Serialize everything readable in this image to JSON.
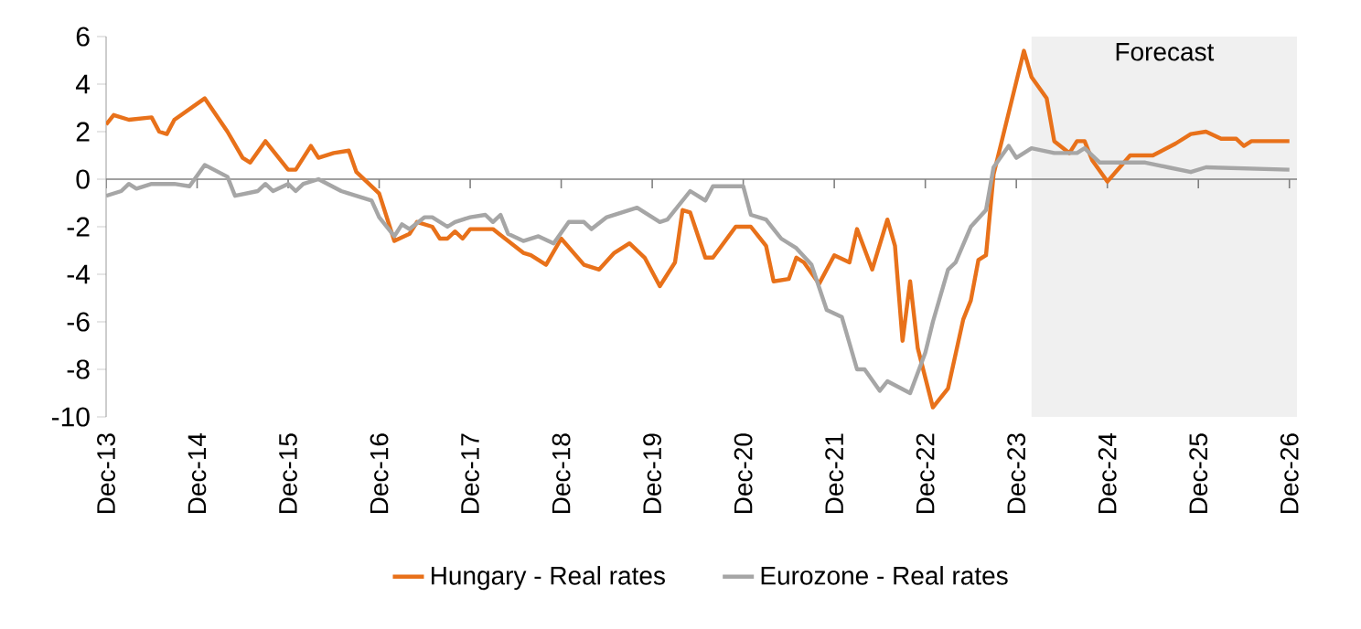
{
  "chart_data": {
    "type": "line",
    "xlim": [
      "2013-12",
      "2027-01"
    ],
    "ylim": [
      -10,
      6
    ],
    "yticks": [
      -10,
      -8,
      -6,
      -4,
      -2,
      0,
      2,
      4,
      6
    ],
    "xticks": [
      {
        "value": "2013-12",
        "label": "Dec-13"
      },
      {
        "value": "2014-12",
        "label": "Dec-14"
      },
      {
        "value": "2015-12",
        "label": "Dec-15"
      },
      {
        "value": "2016-12",
        "label": "Dec-16"
      },
      {
        "value": "2017-12",
        "label": "Dec-17"
      },
      {
        "value": "2018-12",
        "label": "Dec-18"
      },
      {
        "value": "2019-12",
        "label": "Dec-19"
      },
      {
        "value": "2020-12",
        "label": "Dec-20"
      },
      {
        "value": "2021-12",
        "label": "Dec-21"
      },
      {
        "value": "2022-12",
        "label": "Dec-22"
      },
      {
        "value": "2023-12",
        "label": "Dec-23"
      },
      {
        "value": "2024-12",
        "label": "Dec-24"
      },
      {
        "value": "2025-12",
        "label": "Dec-25"
      },
      {
        "value": "2026-12",
        "label": "Dec-26"
      }
    ],
    "grid": false,
    "legend": "bottom",
    "marker": "none",
    "line_style": "solid",
    "ref_lines": [
      {
        "axis": "y",
        "value": 0,
        "color": "#808080"
      }
    ],
    "bands": [
      {
        "axis": "x",
        "from": "2024-02",
        "to": "2027-01",
        "label": "Forecast",
        "color": "#f0f0f0"
      }
    ],
    "series": [
      {
        "name": "Hungary - Real rates",
        "color": "#e8711a",
        "x": [
          "2013-12",
          "2014-01",
          "2014-03",
          "2014-06",
          "2014-07",
          "2014-08",
          "2014-09",
          "2015-01",
          "2015-04",
          "2015-06",
          "2015-07",
          "2015-09",
          "2015-12",
          "2016-01",
          "2016-03",
          "2016-04",
          "2016-06",
          "2016-08",
          "2016-09",
          "2016-12",
          "2017-02",
          "2017-04",
          "2017-05",
          "2017-07",
          "2017-08",
          "2017-09",
          "2017-10",
          "2017-11",
          "2017-12",
          "2018-03",
          "2018-05",
          "2018-07",
          "2018-08",
          "2018-10",
          "2018-12",
          "2019-03",
          "2019-05",
          "2019-07",
          "2019-09",
          "2019-11",
          "2020-01",
          "2020-03",
          "2020-04",
          "2020-05",
          "2020-07",
          "2020-08",
          "2020-11",
          "2021-01",
          "2021-03",
          "2021-04",
          "2021-06",
          "2021-07",
          "2021-08",
          "2021-10",
          "2021-12",
          "2022-02",
          "2022-03",
          "2022-05",
          "2022-07",
          "2022-08",
          "2022-09",
          "2022-10",
          "2022-11",
          "2023-01",
          "2023-03",
          "2023-05",
          "2023-06",
          "2023-07",
          "2023-08",
          "2023-09",
          "2024-01",
          "2024-02",
          "2024-04",
          "2024-05",
          "2024-07",
          "2024-08",
          "2024-09",
          "2024-10",
          "2024-12",
          "2025-03",
          "2025-06",
          "2025-09",
          "2025-11",
          "2026-01",
          "2026-03",
          "2026-05",
          "2026-06",
          "2026-07",
          "2026-12"
        ],
        "values": [
          2.3,
          2.7,
          2.5,
          2.6,
          2.0,
          1.9,
          2.5,
          3.4,
          2.0,
          0.9,
          0.7,
          1.6,
          0.4,
          0.4,
          1.4,
          0.9,
          1.1,
          1.2,
          0.3,
          -0.6,
          -2.6,
          -2.3,
          -1.8,
          -2.0,
          -2.5,
          -2.5,
          -2.2,
          -2.5,
          -2.1,
          -2.1,
          -2.6,
          -3.1,
          -3.2,
          -3.6,
          -2.5,
          -3.6,
          -3.8,
          -3.1,
          -2.7,
          -3.3,
          -4.5,
          -3.5,
          -1.3,
          -1.4,
          -3.3,
          -3.3,
          -2.0,
          -2.0,
          -2.8,
          -4.3,
          -4.2,
          -3.3,
          -3.5,
          -4.4,
          -3.2,
          -3.5,
          -2.1,
          -3.8,
          -1.7,
          -2.8,
          -6.8,
          -4.3,
          -7.1,
          -9.6,
          -8.8,
          -5.9,
          -5.1,
          -3.4,
          -3.2,
          0.2,
          5.4,
          4.3,
          3.4,
          1.6,
          1.1,
          1.6,
          1.6,
          0.8,
          -0.1,
          1.0,
          1.0,
          1.5,
          1.9,
          2.0,
          1.7,
          1.7,
          1.4,
          1.6,
          1.6
        ]
      },
      {
        "name": "Eurozone - Real rates",
        "color": "#a6a6a6",
        "x": [
          "2013-12",
          "2014-02",
          "2014-03",
          "2014-04",
          "2014-06",
          "2014-09",
          "2014-11",
          "2015-01",
          "2015-04",
          "2015-05",
          "2015-08",
          "2015-09",
          "2015-10",
          "2015-12",
          "2016-01",
          "2016-02",
          "2016-04",
          "2016-07",
          "2016-08",
          "2016-11",
          "2016-12",
          "2017-02",
          "2017-03",
          "2017-04",
          "2017-06",
          "2017-07",
          "2017-09",
          "2017-10",
          "2017-12",
          "2018-02",
          "2018-03",
          "2018-04",
          "2018-05",
          "2018-07",
          "2018-09",
          "2018-11",
          "2019-01",
          "2019-03",
          "2019-04",
          "2019-06",
          "2019-08",
          "2019-10",
          "2020-01",
          "2020-02",
          "2020-05",
          "2020-07",
          "2020-08",
          "2020-12",
          "2021-01",
          "2021-03",
          "2021-05",
          "2021-07",
          "2021-09",
          "2021-11",
          "2022-01",
          "2022-03",
          "2022-04",
          "2022-06",
          "2022-07",
          "2022-10",
          "2022-12",
          "2023-01",
          "2023-03",
          "2023-04",
          "2023-06",
          "2023-08",
          "2023-09",
          "2023-11",
          "2023-12",
          "2024-02",
          "2024-05",
          "2024-08",
          "2024-09",
          "2024-11",
          "2025-05",
          "2025-08",
          "2025-11",
          "2026-01",
          "2026-12"
        ],
        "values": [
          -0.7,
          -0.5,
          -0.2,
          -0.4,
          -0.2,
          -0.2,
          -0.3,
          0.6,
          0.1,
          -0.7,
          -0.5,
          -0.2,
          -0.5,
          -0.2,
          -0.5,
          -0.2,
          0.0,
          -0.5,
          -0.6,
          -0.9,
          -1.6,
          -2.4,
          -1.9,
          -2.1,
          -1.6,
          -1.6,
          -2.0,
          -1.8,
          -1.6,
          -1.5,
          -1.8,
          -1.5,
          -2.3,
          -2.6,
          -2.4,
          -2.7,
          -1.8,
          -1.8,
          -2.1,
          -1.6,
          -1.4,
          -1.2,
          -1.8,
          -1.7,
          -0.5,
          -0.9,
          -0.3,
          -0.3,
          -1.5,
          -1.7,
          -2.5,
          -2.9,
          -3.6,
          -5.5,
          -5.8,
          -8.0,
          -8.0,
          -8.9,
          -8.5,
          -9.0,
          -7.3,
          -6.0,
          -3.8,
          -3.5,
          -2.0,
          -1.3,
          0.5,
          1.4,
          0.9,
          1.3,
          1.1,
          1.1,
          1.3,
          0.7,
          0.7,
          0.5,
          0.3,
          0.5,
          0.4
        ]
      }
    ]
  }
}
